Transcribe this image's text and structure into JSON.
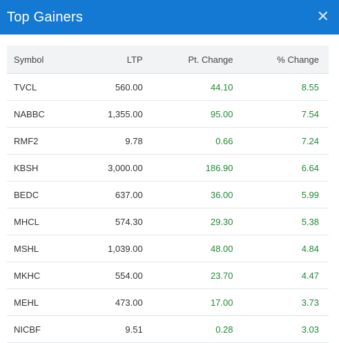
{
  "header": {
    "title": "Top Gainers"
  },
  "table": {
    "columns": [
      "Symbol",
      "LTP",
      "Pt. Change",
      "% Change"
    ],
    "rows": [
      {
        "symbol": "TVCL",
        "ltp": "560.00",
        "pt_change": "44.10",
        "pct_change": "8.55"
      },
      {
        "symbol": "NABBC",
        "ltp": "1,355.00",
        "pt_change": "95.00",
        "pct_change": "7.54"
      },
      {
        "symbol": "RMF2",
        "ltp": "9.78",
        "pt_change": "0.66",
        "pct_change": "7.24"
      },
      {
        "symbol": "KBSH",
        "ltp": "3,000.00",
        "pt_change": "186.90",
        "pct_change": "6.64"
      },
      {
        "symbol": "BEDC",
        "ltp": "637.00",
        "pt_change": "36.00",
        "pct_change": "5.99"
      },
      {
        "symbol": "MHCL",
        "ltp": "574.30",
        "pt_change": "29.30",
        "pct_change": "5.38"
      },
      {
        "symbol": "MSHL",
        "ltp": "1,039.00",
        "pt_change": "48.00",
        "pct_change": "4.84"
      },
      {
        "symbol": "MKHC",
        "ltp": "554.00",
        "pt_change": "23.70",
        "pct_change": "4.47"
      },
      {
        "symbol": "MEHL",
        "ltp": "473.00",
        "pt_change": "17.00",
        "pct_change": "3.73"
      },
      {
        "symbol": "NICBF",
        "ltp": "9.51",
        "pt_change": "0.28",
        "pct_change": "3.03"
      }
    ]
  },
  "colors": {
    "header_bg": "#1479d3",
    "positive": "#1e8a33"
  },
  "icons": {
    "close": "close-icon"
  }
}
